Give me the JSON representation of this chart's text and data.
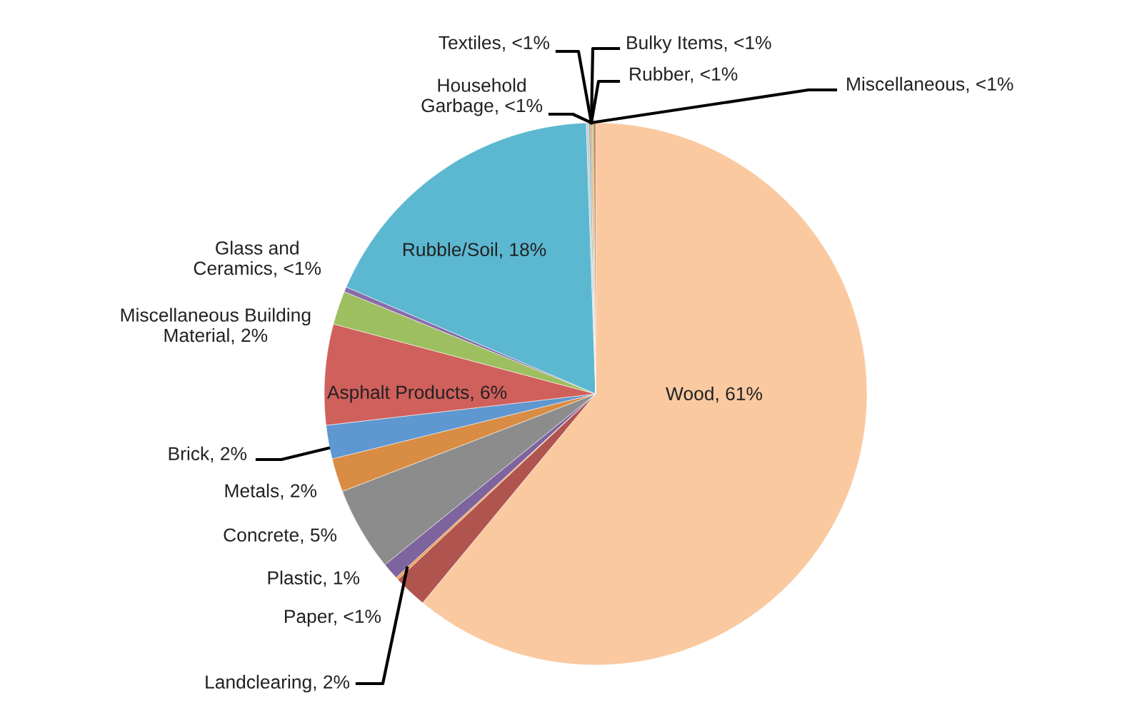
{
  "chart_data": {
    "type": "pie",
    "categories": [
      "Wood, 61%",
      "Landclearing, 2%",
      "Paper, <1%",
      "Plastic, 1%",
      "Concrete, 5%",
      "Metals, 2%",
      "Brick, 2%",
      "Asphalt Products, 6%",
      "Miscellaneous Building\nMaterial, 2%",
      "Glass and\nCeramics, <1%",
      "Rubble/Soil, 18%",
      "Household\nGarbage, <1%",
      "Textiles, <1%",
      "Bulky Items, <1%",
      "Rubber, <1%",
      "Miscellaneous, <1%"
    ],
    "values": [
      61,
      2,
      0.15,
      1,
      5,
      2,
      2,
      6,
      2,
      0.3,
      18,
      0.15,
      0.1,
      0.1,
      0.1,
      0.1
    ],
    "colors": [
      "#fac9a0",
      "#b0544f",
      "#f0a050",
      "#7e649e",
      "#8c8c8c",
      "#d98c43",
      "#5f97d0",
      "#d0605c",
      "#9dbf60",
      "#8a6cab",
      "#5bb8d0",
      "#c9c9c9",
      "#4bacc6",
      "#f79646",
      "#9bbb59",
      "#c0504d"
    ]
  }
}
